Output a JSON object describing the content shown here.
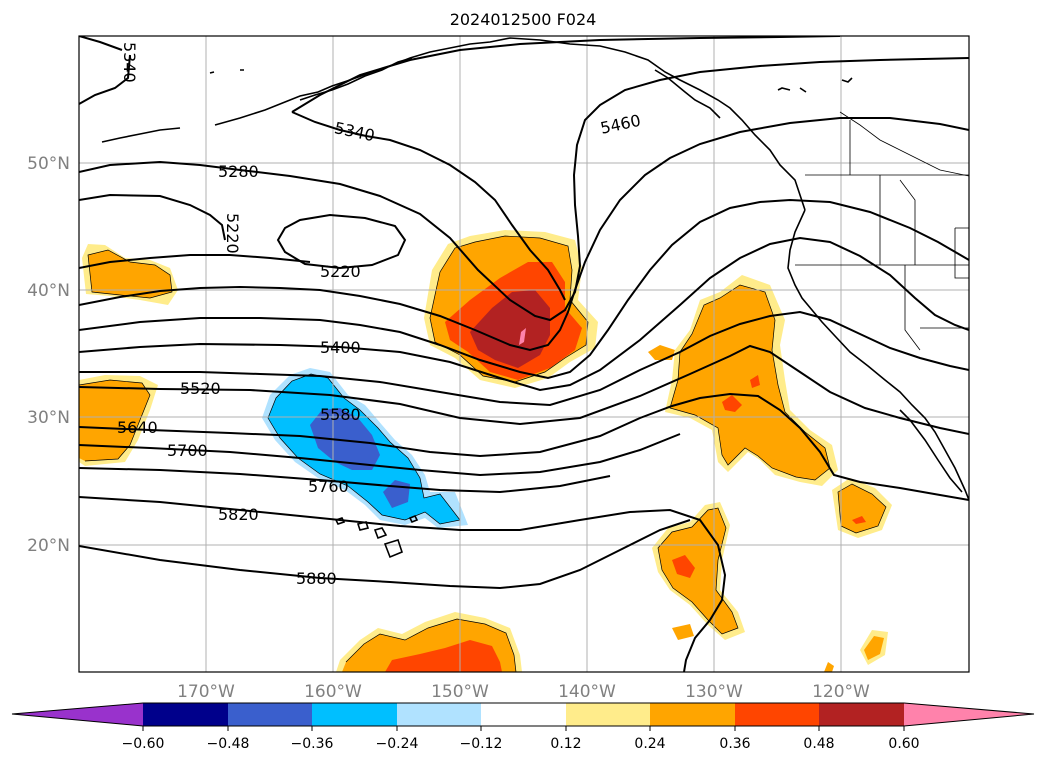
{
  "title": "2024012500 F024",
  "lat_labels": [
    "50°N",
    "40°N",
    "30°N",
    "20°N"
  ],
  "lon_labels": [
    "170°W",
    "160°W",
    "150°W",
    "140°W",
    "130°W",
    "120°W"
  ],
  "contour_labels": [
    "5340",
    "5340",
    "5460",
    "5280",
    "5220",
    "5220",
    "5400",
    "5520",
    "5580",
    "5640",
    "5700",
    "5760",
    "5820",
    "5880"
  ],
  "colorbar": {
    "tick_labels": [
      "−0.60",
      "−0.48",
      "−0.36",
      "−0.24",
      "−0.12",
      "0.12",
      "0.24",
      "0.36",
      "0.48",
      "0.60"
    ],
    "colors": [
      "#9932cc",
      "#00008b",
      "#3a5fcd",
      "#00bfff",
      "#b0e2ff",
      "#ffffff",
      "#ffec8b",
      "#ffa500",
      "#ff4500",
      "#b22222",
      "#ff82ab"
    ]
  },
  "colors": {
    "neg_036": "#3a5fcd",
    "neg_024": "#00bfff",
    "neg_012": "#b0e2ff",
    "pos_012": "#ffec8b",
    "pos_024": "#ffa500",
    "pos_036": "#ff4500",
    "pos_048": "#b22222",
    "pos_060": "#ff82ab",
    "contour": "#000000",
    "grid": "#b0b0b0"
  }
}
